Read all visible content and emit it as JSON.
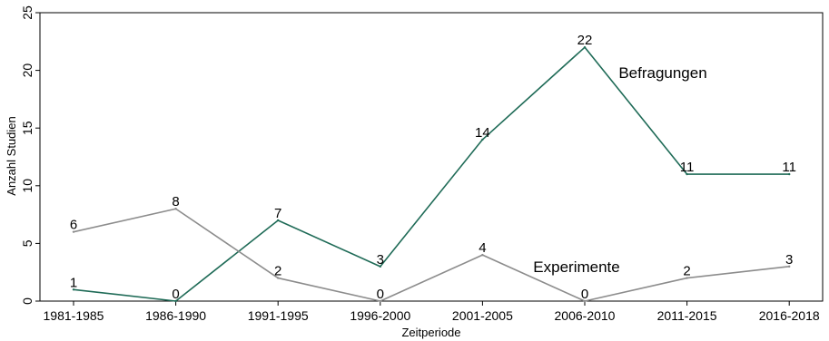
{
  "chart_data": {
    "type": "line",
    "xlabel": "Zeitperiode",
    "ylabel": "Anzahl Studien",
    "ylim": [
      0,
      25
    ],
    "yticks": [
      0,
      5,
      10,
      15,
      20,
      25
    ],
    "categories": [
      "1981-1985",
      "1986-1990",
      "1991-1995",
      "1996-2000",
      "2001-2005",
      "2006-2010",
      "2011-2015",
      "2016-2018"
    ],
    "series": [
      {
        "name": "Befragungen",
        "values": [
          1,
          0,
          7,
          3,
          14,
          22,
          11,
          11
        ],
        "color": "#1f6b57"
      },
      {
        "name": "Experimente",
        "values": [
          6,
          8,
          2,
          0,
          4,
          0,
          2,
          3
        ],
        "color": "#8c8c8c"
      }
    ],
    "grid": false,
    "legend": "inline labels"
  }
}
